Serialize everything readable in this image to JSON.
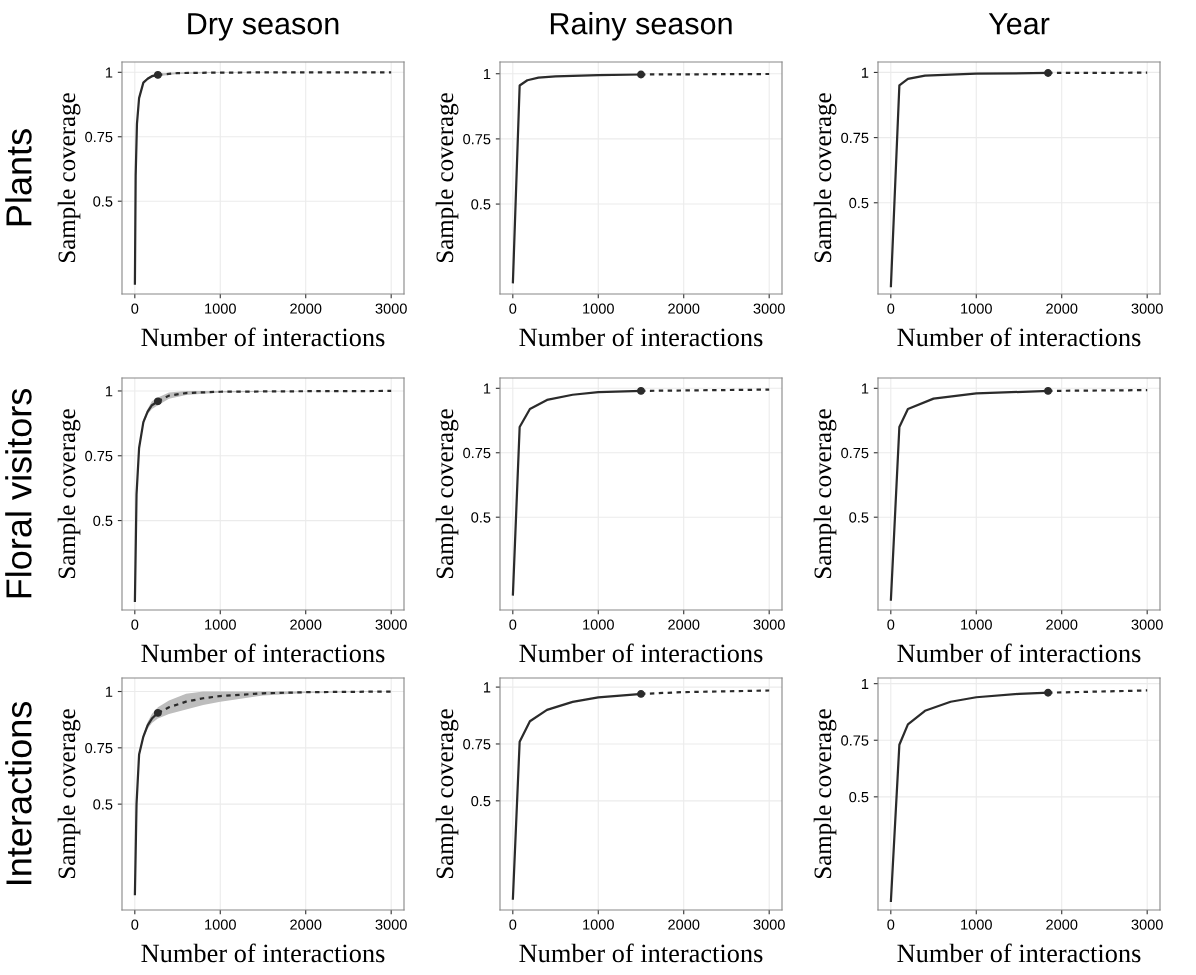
{
  "chart_data": [
    {
      "type": "line",
      "title": "Dry season",
      "annotations": [
        "Plants"
      ],
      "xlabel": "Number of interactions",
      "ylabel": "Sample coverage",
      "xlim": [
        -150,
        3150
      ],
      "xticks": [
        0,
        1000,
        2000,
        3000
      ],
      "ylim": [
        0.14,
        1.04
      ],
      "yticks": [
        0.5,
        0.75,
        1
      ],
      "grid": true,
      "series": [
        {
          "line_style": "solid",
          "color": "#2b2b2b",
          "x": [
            1,
            10,
            25,
            50,
            100,
            150,
            200,
            270
          ],
          "values": [
            0.18,
            0.6,
            0.8,
            0.9,
            0.96,
            0.975,
            0.985,
            0.99
          ],
          "lower": [
            0.18,
            0.59,
            0.79,
            0.89,
            0.955,
            0.97,
            0.98,
            0.985
          ],
          "upper": [
            0.18,
            0.61,
            0.81,
            0.91,
            0.965,
            0.98,
            0.99,
            0.995
          ]
        },
        {
          "line_style": "dotted",
          "color": "#2b2b2b",
          "x": [
            270,
            500,
            1000,
            2000,
            3000
          ],
          "values": [
            0.99,
            0.997,
            0.999,
            1,
            1
          ],
          "lower": [
            0.985,
            0.993,
            0.998,
            1,
            1
          ],
          "upper": [
            0.995,
            1,
            1,
            1,
            1
          ]
        },
        {
          "type": "scatter",
          "marker": "circle",
          "color": "#2b2b2b",
          "x": [
            270
          ],
          "values": [
            0.99
          ]
        }
      ]
    },
    {
      "type": "line",
      "title": "Rainy season",
      "xlabel": "Number of interactions",
      "ylabel": "Sample coverage",
      "xlim": [
        -150,
        3150
      ],
      "xticks": [
        0,
        1000,
        2000,
        3000
      ],
      "ylim": [
        0.155,
        1.045
      ],
      "yticks": [
        0.5,
        0.75,
        1
      ],
      "grid": true,
      "series": [
        {
          "line_style": "solid",
          "color": "#2b2b2b",
          "x": [
            1,
            80,
            170,
            300,
            500,
            1000,
            1500
          ],
          "values": [
            0.2,
            0.955,
            0.975,
            0.985,
            0.99,
            0.995,
            0.997
          ]
        },
        {
          "line_style": "dotted",
          "color": "#2b2b2b",
          "x": [
            1500,
            3000
          ],
          "values": [
            0.997,
            0.999
          ]
        },
        {
          "type": "scatter",
          "marker": "circle",
          "color": "#2b2b2b",
          "x": [
            1500
          ],
          "values": [
            0.997
          ]
        }
      ]
    },
    {
      "type": "line",
      "title": "Year",
      "xlabel": "Number of interactions",
      "ylabel": "Sample coverage",
      "xlim": [
        -150,
        3150
      ],
      "xticks": [
        0,
        1000,
        2000,
        3000
      ],
      "ylim": [
        0.15,
        1.04
      ],
      "yticks": [
        0.5,
        0.75,
        1
      ],
      "grid": true,
      "series": [
        {
          "line_style": "solid",
          "color": "#2b2b2b",
          "x": [
            1,
            100,
            200,
            400,
            1000,
            1840
          ],
          "values": [
            0.18,
            0.95,
            0.975,
            0.988,
            0.995,
            0.998
          ]
        },
        {
          "line_style": "dotted",
          "color": "#2b2b2b",
          "x": [
            1840,
            3000
          ],
          "values": [
            0.998,
            0.999
          ]
        },
        {
          "type": "scatter",
          "marker": "circle",
          "color": "#2b2b2b",
          "x": [
            1840
          ],
          "values": [
            0.998
          ]
        }
      ]
    },
    {
      "type": "line",
      "annotations": [
        "Floral visitors"
      ],
      "xlabel": "Number of interactions",
      "ylabel": "Sample coverage",
      "xlim": [
        -150,
        3150
      ],
      "xticks": [
        0,
        1000,
        2000,
        3000
      ],
      "ylim": [
        0.155,
        1.05
      ],
      "yticks": [
        0.5,
        0.75,
        1
      ],
      "grid": true,
      "series": [
        {
          "line_style": "solid",
          "color": "#2b2b2b",
          "x": [
            1,
            20,
            50,
            100,
            150,
            200,
            270
          ],
          "values": [
            0.19,
            0.6,
            0.78,
            0.88,
            0.92,
            0.945,
            0.96
          ],
          "lower": [
            0.19,
            0.59,
            0.77,
            0.87,
            0.91,
            0.93,
            0.945
          ],
          "upper": [
            0.19,
            0.61,
            0.79,
            0.89,
            0.93,
            0.96,
            0.975
          ]
        },
        {
          "line_style": "dotted",
          "color": "#2b2b2b",
          "x": [
            270,
            400,
            600,
            1000,
            2000,
            3000
          ],
          "values": [
            0.96,
            0.982,
            0.992,
            0.997,
            0.999,
            1
          ],
          "lower": [
            0.945,
            0.97,
            0.984,
            0.994,
            0.999,
            1
          ],
          "upper": [
            0.975,
            0.994,
            1,
            1,
            1,
            1
          ]
        },
        {
          "type": "scatter",
          "marker": "circle",
          "color": "#2b2b2b",
          "x": [
            270
          ],
          "values": [
            0.96
          ]
        }
      ]
    },
    {
      "type": "line",
      "xlabel": "Number of interactions",
      "ylabel": "Sample coverage",
      "xlim": [
        -150,
        3150
      ],
      "xticks": [
        0,
        1000,
        2000,
        3000
      ],
      "ylim": [
        0.14,
        1.04
      ],
      "yticks": [
        0.5,
        0.75,
        1
      ],
      "grid": true,
      "series": [
        {
          "line_style": "solid",
          "color": "#2b2b2b",
          "x": [
            1,
            80,
            200,
            400,
            700,
            1000,
            1500
          ],
          "values": [
            0.2,
            0.85,
            0.92,
            0.955,
            0.975,
            0.985,
            0.99
          ]
        },
        {
          "line_style": "dotted",
          "color": "#2b2b2b",
          "x": [
            1500,
            3000
          ],
          "values": [
            0.99,
            0.995
          ]
        },
        {
          "type": "scatter",
          "marker": "circle",
          "color": "#2b2b2b",
          "x": [
            1500
          ],
          "values": [
            0.99
          ]
        }
      ]
    },
    {
      "type": "line",
      "xlabel": "Number of interactions",
      "ylabel": "Sample coverage",
      "xlim": [
        -150,
        3150
      ],
      "xticks": [
        0,
        1000,
        2000,
        3000
      ],
      "ylim": [
        0.14,
        1.04
      ],
      "yticks": [
        0.5,
        0.75,
        1
      ],
      "grid": true,
      "series": [
        {
          "line_style": "solid",
          "color": "#2b2b2b",
          "x": [
            1,
            100,
            200,
            500,
            1000,
            1840
          ],
          "values": [
            0.18,
            0.85,
            0.92,
            0.96,
            0.98,
            0.99
          ]
        },
        {
          "line_style": "dotted",
          "color": "#2b2b2b",
          "x": [
            1840,
            3000
          ],
          "values": [
            0.99,
            0.993
          ]
        },
        {
          "type": "scatter",
          "marker": "circle",
          "color": "#2b2b2b",
          "x": [
            1840
          ],
          "values": [
            0.99
          ]
        }
      ]
    },
    {
      "type": "line",
      "annotations": [
        "Interactions"
      ],
      "xlabel": "Number of interactions",
      "ylabel": "Sample coverage",
      "xlim": [
        -150,
        3150
      ],
      "xticks": [
        0,
        1000,
        2000,
        3000
      ],
      "ylim": [
        0.03,
        1.06
      ],
      "yticks": [
        0.5,
        0.75,
        1
      ],
      "grid": true,
      "series": [
        {
          "line_style": "solid",
          "color": "#2b2b2b",
          "x": [
            1,
            20,
            50,
            100,
            150,
            200,
            270
          ],
          "values": [
            0.1,
            0.5,
            0.72,
            0.8,
            0.85,
            0.88,
            0.905
          ],
          "lower": [
            0.1,
            0.49,
            0.71,
            0.79,
            0.835,
            0.86,
            0.88
          ],
          "upper": [
            0.1,
            0.51,
            0.73,
            0.81,
            0.865,
            0.9,
            0.93
          ]
        },
        {
          "line_style": "dotted",
          "color": "#2b2b2b",
          "x": [
            270,
            400,
            600,
            800,
            1000,
            1500,
            2000,
            3000
          ],
          "values": [
            0.905,
            0.93,
            0.955,
            0.97,
            0.98,
            0.992,
            0.997,
            1
          ],
          "lower": [
            0.88,
            0.9,
            0.92,
            0.94,
            0.955,
            0.982,
            0.993,
            1
          ],
          "upper": [
            0.93,
            0.96,
            0.99,
            1,
            1,
            1,
            1,
            1
          ]
        },
        {
          "type": "scatter",
          "marker": "circle",
          "color": "#2b2b2b",
          "x": [
            270
          ],
          "values": [
            0.905
          ]
        }
      ]
    },
    {
      "type": "line",
      "xlabel": "Number of interactions",
      "ylabel": "Sample coverage",
      "xlim": [
        -150,
        3150
      ],
      "xticks": [
        0,
        1000,
        2000,
        3000
      ],
      "ylim": [
        0.02,
        1.04
      ],
      "yticks": [
        0.5,
        0.75,
        1
      ],
      "grid": true,
      "series": [
        {
          "line_style": "solid",
          "color": "#2b2b2b",
          "x": [
            1,
            80,
            200,
            400,
            700,
            1000,
            1500
          ],
          "values": [
            0.07,
            0.76,
            0.85,
            0.9,
            0.935,
            0.955,
            0.97
          ]
        },
        {
          "line_style": "dotted",
          "color": "#2b2b2b",
          "x": [
            1500,
            2000,
            3000
          ],
          "values": [
            0.97,
            0.978,
            0.985
          ]
        },
        {
          "type": "scatter",
          "marker": "circle",
          "color": "#2b2b2b",
          "x": [
            1500
          ],
          "values": [
            0.97
          ]
        }
      ]
    },
    {
      "type": "line",
      "xlabel": "Number of interactions",
      "ylabel": "Sample coverage",
      "xlim": [
        -150,
        3150
      ],
      "xticks": [
        0,
        1000,
        2000,
        3000
      ],
      "ylim": [
        0.0,
        1.025
      ],
      "yticks": [
        0.5,
        0.75,
        1
      ],
      "grid": true,
      "series": [
        {
          "line_style": "solid",
          "color": "#2b2b2b",
          "x": [
            1,
            100,
            200,
            400,
            700,
            1000,
            1500,
            1840
          ],
          "values": [
            0.04,
            0.73,
            0.82,
            0.88,
            0.92,
            0.94,
            0.955,
            0.96
          ]
        },
        {
          "line_style": "dotted",
          "color": "#2b2b2b",
          "x": [
            1840,
            3000
          ],
          "values": [
            0.96,
            0.97
          ]
        },
        {
          "type": "scatter",
          "marker": "circle",
          "color": "#2b2b2b",
          "x": [
            1840
          ],
          "values": [
            0.96
          ]
        }
      ]
    }
  ]
}
